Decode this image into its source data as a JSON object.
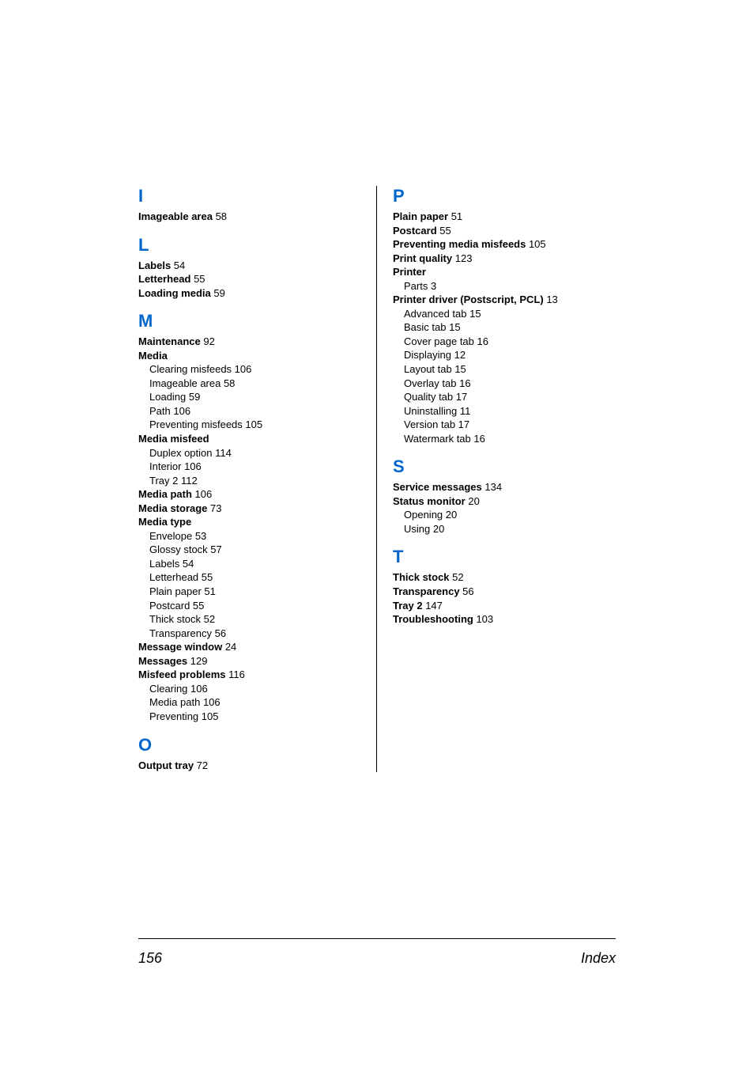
{
  "page": {
    "number": "156",
    "label": "Index",
    "font": {
      "body_size_pt": 10,
      "letter_size_pt": 17,
      "footer_size_pt": 14
    },
    "colors": {
      "letter": "#0066cc",
      "text": "#000000",
      "rule": "#000000",
      "bg": "#ffffff"
    }
  },
  "left": [
    {
      "letter": "I"
    },
    {
      "bold": "Imageable area",
      "page": "58"
    },
    {
      "letter": "L"
    },
    {
      "bold": "Labels",
      "page": "54"
    },
    {
      "bold": "Letterhead",
      "page": "55"
    },
    {
      "bold": "Loading media",
      "page": "59"
    },
    {
      "letter": "M"
    },
    {
      "bold": "Maintenance",
      "page": "92"
    },
    {
      "bold": "Media"
    },
    {
      "sub": "Clearing misfeeds",
      "page": "106"
    },
    {
      "sub": "Imageable area",
      "page": "58"
    },
    {
      "sub": "Loading",
      "page": "59"
    },
    {
      "sub": "Path",
      "page": "106"
    },
    {
      "sub": "Preventing misfeeds",
      "page": "105"
    },
    {
      "bold": "Media misfeed"
    },
    {
      "sub": "Duplex option",
      "page": "114"
    },
    {
      "sub": "Interior",
      "page": "106"
    },
    {
      "sub": "Tray 2",
      "page": "112"
    },
    {
      "bold": "Media path",
      "page": "106"
    },
    {
      "bold": "Media storage",
      "page": "73"
    },
    {
      "bold": "Media type"
    },
    {
      "sub": "Envelope",
      "page": "53"
    },
    {
      "sub": "Glossy stock",
      "page": "57"
    },
    {
      "sub": "Labels",
      "page": "54"
    },
    {
      "sub": "Letterhead",
      "page": "55"
    },
    {
      "sub": "Plain paper",
      "page": "51"
    },
    {
      "sub": "Postcard",
      "page": "55"
    },
    {
      "sub": "Thick stock",
      "page": "52"
    },
    {
      "sub": "Transparency",
      "page": "56"
    },
    {
      "bold": "Message window",
      "page": "24"
    },
    {
      "bold": "Messages",
      "page": "129"
    },
    {
      "bold": "Misfeed problems",
      "page": "116"
    },
    {
      "sub": "Clearing",
      "page": "106"
    },
    {
      "sub": "Media path",
      "page": "106"
    },
    {
      "sub": "Preventing",
      "page": "105"
    },
    {
      "letter": "O"
    },
    {
      "bold": "Output tray",
      "page": "72"
    }
  ],
  "right": [
    {
      "letter": "P"
    },
    {
      "bold": "Plain paper",
      "page": "51"
    },
    {
      "bold": "Postcard",
      "page": "55"
    },
    {
      "bold": "Preventing media misfeeds",
      "page": "105"
    },
    {
      "bold": "Print quality",
      "page": "123"
    },
    {
      "bold": "Printer"
    },
    {
      "sub": "Parts",
      "page": "3"
    },
    {
      "bold": "Printer driver (Postscript, PCL)",
      "page": "13"
    },
    {
      "sub": "Advanced tab",
      "page": "15"
    },
    {
      "sub": "Basic tab",
      "page": "15"
    },
    {
      "sub": "Cover page tab",
      "page": "16"
    },
    {
      "sub": "Displaying",
      "page": "12"
    },
    {
      "sub": "Layout tab",
      "page": "15"
    },
    {
      "sub": "Overlay tab",
      "page": "16"
    },
    {
      "sub": "Quality tab",
      "page": "17"
    },
    {
      "sub": "Uninstalling",
      "page": "11"
    },
    {
      "sub": "Version tab",
      "page": "17"
    },
    {
      "sub": "Watermark tab",
      "page": "16"
    },
    {
      "letter": "S"
    },
    {
      "bold": "Service messages",
      "page": "134"
    },
    {
      "bold": "Status monitor",
      "page": "20"
    },
    {
      "sub": "Opening",
      "page": "20"
    },
    {
      "sub": "Using",
      "page": "20"
    },
    {
      "letter": "T"
    },
    {
      "bold": "Thick stock",
      "page": "52"
    },
    {
      "bold": "Transparency",
      "page": "56"
    },
    {
      "bold": "Tray 2",
      "page": "147"
    },
    {
      "bold": "Troubleshooting",
      "page": "103"
    }
  ]
}
